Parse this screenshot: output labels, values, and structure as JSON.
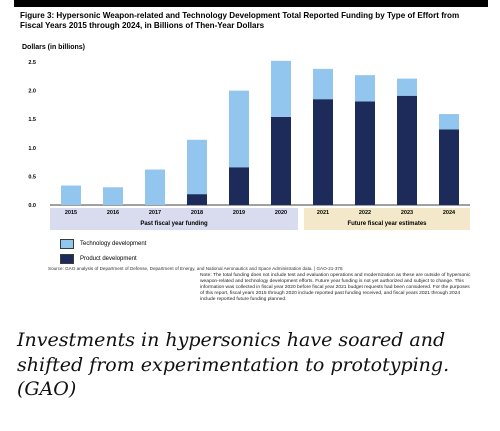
{
  "figure": {
    "title": "Figure 3: Hypersonic Weapon-related and Technology Development Total Reported Funding by Type of Effort from Fiscal Years 2015 through 2024, in Billions of Then-Year Dollars",
    "source": "Source: GAO analysis of Department of Defense, Department of Energy, and National Aeronautics and Space Administration data.  |  GAO-21-378",
    "note": "Note: The total funding does not include test and evaluation operations and modernization as these are outside of hypersonic weapon-related and technology development efforts. Future year funding is not yet authorized and subject to change. This information was collected in fiscal year 2020 before fiscal year 2021 budget requests had been considered. For the purposes of this report, fiscal years 2015 through 2020 include reported past funding received, and fiscal years 2021 through 2024 include reported future funding planned."
  },
  "chart_data": {
    "type": "bar",
    "stacked": true,
    "ylabel": "Dollars (in billions)",
    "ylim": [
      0,
      2.5
    ],
    "yticks": [
      "0.0",
      "0.5",
      "1.0",
      "1.5",
      "2.0",
      "2.5"
    ],
    "categories": [
      "2015",
      "2016",
      "2017",
      "2018",
      "2019",
      "2020",
      "2021",
      "2022",
      "2023",
      "2024"
    ],
    "series": [
      {
        "name": "Product development",
        "color": "#1c2b5a",
        "values": [
          0,
          0,
          0,
          0.19,
          0.66,
          1.54,
          1.85,
          1.81,
          1.91,
          1.32
        ]
      },
      {
        "name": "Technology development",
        "color": "#93c6ee",
        "values": [
          0.34,
          0.31,
          0.62,
          0.95,
          1.34,
          0.98,
          0.53,
          0.46,
          0.3,
          0.27
        ]
      }
    ],
    "groups": [
      {
        "label": "Past fiscal year funding",
        "color": "#d9dcef"
      },
      {
        "label": "Future fiscal year estimates",
        "color": "#f3e8c9"
      }
    ],
    "legend": [
      "Technology development",
      "Product development"
    ],
    "grid": false,
    "legend_placement": "bottom-left"
  },
  "caption": "Investments in hypersonics have soared and shifted from experimentation to prototyping. (GAO)"
}
